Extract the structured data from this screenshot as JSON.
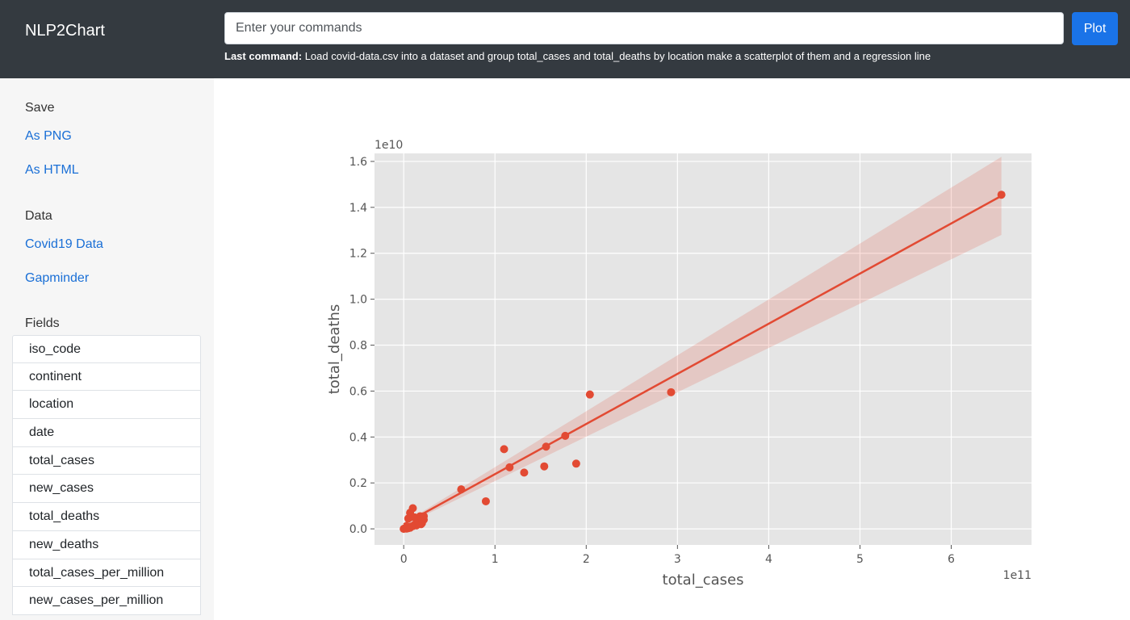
{
  "app": {
    "title": "NLP2Chart"
  },
  "command": {
    "placeholder": "Enter your commands",
    "plot_label": "Plot",
    "last_label": "Last command:",
    "last_text": "Load covid-data.csv into a dataset and group total_cases and total_deaths by location make a scatterplot of them and a regression line"
  },
  "sidebar": {
    "save_heading": "Save",
    "save_links": [
      "As PNG",
      "As HTML"
    ],
    "data_heading": "Data",
    "data_links": [
      "Covid19 Data",
      "Gapminder"
    ],
    "fields_heading": "Fields",
    "fields": [
      "iso_code",
      "continent",
      "location",
      "date",
      "total_cases",
      "new_cases",
      "total_deaths",
      "new_deaths",
      "total_cases_per_million",
      "new_cases_per_million"
    ]
  },
  "chart_data": {
    "type": "scatter",
    "xlabel": "total_cases",
    "ylabel": "total_deaths",
    "x_offset_label": "1e11",
    "y_offset_label": "1e10",
    "xlim": [
      -0.32,
      6.88
    ],
    "ylim": [
      -0.07,
      1.635
    ],
    "x_ticks": [
      0,
      1,
      2,
      3,
      4,
      5,
      6
    ],
    "x_tick_labels": [
      "0",
      "1",
      "2",
      "3",
      "4",
      "5",
      "6"
    ],
    "y_ticks": [
      0.0,
      0.2,
      0.4,
      0.6,
      0.8,
      1.0,
      1.2,
      1.4,
      1.6
    ],
    "y_tick_labels": [
      "0.0",
      "0.2",
      "0.4",
      "0.6",
      "0.8",
      "1.0",
      "1.2",
      "1.4",
      "1.6"
    ],
    "grid": true,
    "background": "#e5e5e5",
    "point_color": "#e24a33",
    "points": [
      {
        "x": 0.0,
        "y": 0.0
      },
      {
        "x": 0.01,
        "y": 0.002
      },
      {
        "x": 0.02,
        "y": 0.004
      },
      {
        "x": 0.03,
        "y": 0.001
      },
      {
        "x": 0.04,
        "y": 0.006
      },
      {
        "x": 0.05,
        "y": 0.003
      },
      {
        "x": 0.06,
        "y": 0.008
      },
      {
        "x": 0.07,
        "y": 0.005
      },
      {
        "x": 0.08,
        "y": 0.01
      },
      {
        "x": 0.1,
        "y": 0.012
      },
      {
        "x": 0.12,
        "y": 0.018
      },
      {
        "x": 0.14,
        "y": 0.015
      },
      {
        "x": 0.16,
        "y": 0.022
      },
      {
        "x": 0.18,
        "y": 0.03
      },
      {
        "x": 0.2,
        "y": 0.025
      },
      {
        "x": 0.22,
        "y": 0.04
      },
      {
        "x": 0.05,
        "y": 0.045
      },
      {
        "x": 0.07,
        "y": 0.07
      },
      {
        "x": 0.1,
        "y": 0.09
      },
      {
        "x": 0.12,
        "y": 0.05
      },
      {
        "x": 0.15,
        "y": 0.035
      },
      {
        "x": 0.18,
        "y": 0.055
      },
      {
        "x": 0.2,
        "y": 0.045
      },
      {
        "x": 0.22,
        "y": 0.055
      },
      {
        "x": 0.19,
        "y": 0.02
      },
      {
        "x": 0.63,
        "y": 0.172
      },
      {
        "x": 0.9,
        "y": 0.12
      },
      {
        "x": 1.1,
        "y": 0.347
      },
      {
        "x": 1.16,
        "y": 0.268
      },
      {
        "x": 1.32,
        "y": 0.245
      },
      {
        "x": 1.54,
        "y": 0.272
      },
      {
        "x": 1.56,
        "y": 0.358
      },
      {
        "x": 1.77,
        "y": 0.405
      },
      {
        "x": 1.89,
        "y": 0.284
      },
      {
        "x": 2.04,
        "y": 0.585
      },
      {
        "x": 2.93,
        "y": 0.595
      },
      {
        "x": 6.55,
        "y": 1.455
      }
    ],
    "regression": {
      "x0": 0.0,
      "y0": 0.02,
      "x1": 6.55,
      "y1": 1.45
    },
    "ci_band": {
      "x0": 0.0,
      "half_width0": 0.005,
      "x1": 6.55,
      "half_width1": 0.17
    }
  }
}
